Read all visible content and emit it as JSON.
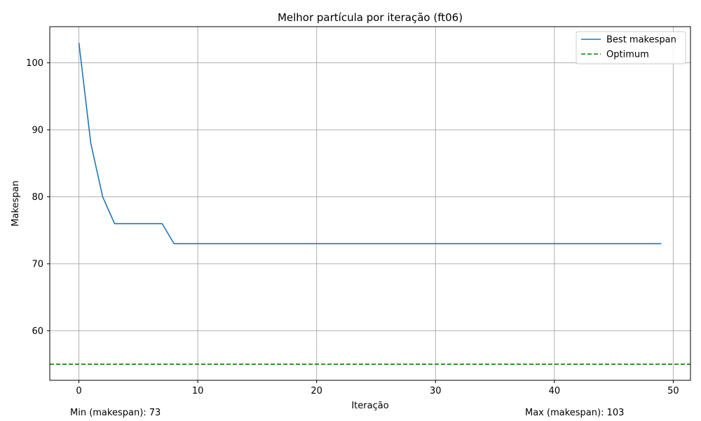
{
  "chart_data": {
    "type": "line",
    "title": "Melhor partícula por iteração (ft06)",
    "xlabel": "Iteração",
    "ylabel": "Makespan",
    "xlim": [
      -2.45,
      51.45
    ],
    "ylim": [
      52.6,
      105.4
    ],
    "xticks": [
      0,
      10,
      20,
      30,
      40,
      50
    ],
    "yticks": [
      60,
      70,
      80,
      90,
      100
    ],
    "grid": true,
    "legend_position": "top-right",
    "series": [
      {
        "name": "Best makespan",
        "color": "#1f77b4",
        "style": "solid",
        "x": [
          0,
          1,
          2,
          3,
          4,
          5,
          6,
          7,
          8,
          9,
          10,
          11,
          12,
          13,
          14,
          15,
          16,
          17,
          18,
          19,
          20,
          21,
          22,
          23,
          24,
          25,
          26,
          27,
          28,
          29,
          30,
          31,
          32,
          33,
          34,
          35,
          36,
          37,
          38,
          39,
          40,
          41,
          42,
          43,
          44,
          45,
          46,
          47,
          48,
          49
        ],
        "y": [
          103,
          88,
          80,
          76,
          76,
          76,
          76,
          76,
          73,
          73,
          73,
          73,
          73,
          73,
          73,
          73,
          73,
          73,
          73,
          73,
          73,
          73,
          73,
          73,
          73,
          73,
          73,
          73,
          73,
          73,
          73,
          73,
          73,
          73,
          73,
          73,
          73,
          73,
          73,
          73,
          73,
          73,
          73,
          73,
          73,
          73,
          73,
          73,
          73,
          73
        ]
      },
      {
        "name": "Optimum",
        "color": "#008000",
        "style": "dashed",
        "hline": 55
      }
    ]
  },
  "footer": {
    "min_text": "Min (makespan): 73",
    "max_text": "Max (makespan): 103"
  }
}
